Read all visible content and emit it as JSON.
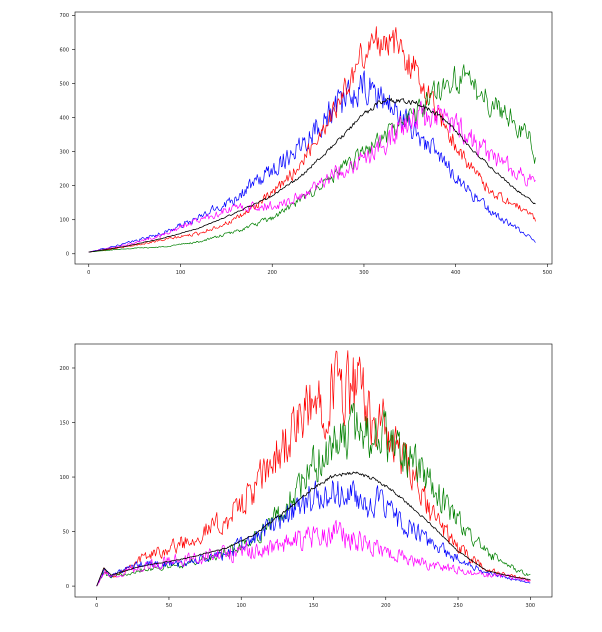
{
  "chart_data": [
    {
      "type": "line",
      "title": "",
      "xlabel": "",
      "ylabel": "",
      "xlim": [
        -15,
        505
      ],
      "ylim": [
        -30,
        710
      ],
      "x_ticks": [
        0,
        100,
        200,
        300,
        400,
        500
      ],
      "y_ticks": [
        0,
        100,
        200,
        300,
        400,
        500,
        600,
        700
      ],
      "grid": false,
      "series": [
        {
          "color": "#0000ff",
          "noise": 0.09,
          "x": [
            0,
            40,
            80,
            120,
            160,
            200,
            230,
            260,
            280,
            300,
            320,
            340,
            360,
            380,
            400,
            420,
            440,
            460,
            480,
            487
          ],
          "y": [
            5,
            30,
            60,
            105,
            165,
            245,
            320,
            405,
            450,
            485,
            460,
            400,
            350,
            290,
            230,
            170,
            120,
            85,
            50,
            35
          ]
        },
        {
          "color": "#ff0000",
          "noise": 0.07,
          "x": [
            0,
            40,
            80,
            120,
            160,
            200,
            230,
            260,
            280,
            300,
            320,
            340,
            360,
            380,
            400,
            420,
            440,
            460,
            480,
            487
          ],
          "y": [
            5,
            20,
            40,
            60,
            100,
            175,
            260,
            390,
            480,
            590,
            640,
            600,
            520,
            420,
            320,
            240,
            180,
            150,
            120,
            100
          ]
        },
        {
          "color": "#008000",
          "noise": 0.07,
          "x": [
            0,
            40,
            80,
            120,
            160,
            200,
            230,
            260,
            280,
            300,
            320,
            340,
            360,
            380,
            400,
            420,
            440,
            460,
            480,
            487
          ],
          "y": [
            5,
            15,
            20,
            35,
            65,
            105,
            155,
            215,
            255,
            300,
            340,
            380,
            420,
            480,
            520,
            490,
            440,
            400,
            340,
            270
          ]
        },
        {
          "color": "#ff00ff",
          "noise": 0.09,
          "x": [
            0,
            40,
            80,
            120,
            160,
            200,
            230,
            260,
            280,
            300,
            320,
            340,
            360,
            380,
            400,
            420,
            440,
            460,
            480,
            487
          ],
          "y": [
            5,
            25,
            55,
            100,
            135,
            140,
            165,
            225,
            250,
            280,
            320,
            370,
            400,
            410,
            380,
            330,
            290,
            250,
            220,
            200
          ]
        },
        {
          "color": "#000000",
          "noise": 0.015,
          "x": [
            0,
            40,
            80,
            120,
            160,
            200,
            230,
            260,
            280,
            300,
            320,
            340,
            360,
            380,
            400,
            420,
            440,
            460,
            480,
            487
          ],
          "y": [
            5,
            22,
            45,
            75,
            120,
            170,
            225,
            300,
            355,
            410,
            450,
            450,
            440,
            410,
            360,
            300,
            250,
            200,
            160,
            145
          ]
        }
      ]
    },
    {
      "type": "line",
      "title": "",
      "xlabel": "",
      "ylabel": "",
      "xlim": [
        -15,
        315
      ],
      "ylim": [
        -10,
        222
      ],
      "x_ticks": [
        0,
        50,
        100,
        150,
        200,
        250,
        300
      ],
      "y_ticks": [
        0,
        50,
        100,
        150,
        200
      ],
      "grid": false,
      "series": [
        {
          "color": "#ff0000",
          "noise": 0.16,
          "x": [
            0,
            5,
            10,
            30,
            60,
            90,
            110,
            130,
            150,
            165,
            180,
            195,
            210,
            230,
            250,
            270,
            290,
            300
          ],
          "y": [
            0,
            15,
            8,
            25,
            40,
            60,
            90,
            130,
            165,
            185,
            180,
            150,
            120,
            70,
            35,
            15,
            8,
            5
          ]
        },
        {
          "color": "#008000",
          "noise": 0.14,
          "x": [
            0,
            5,
            10,
            30,
            60,
            90,
            110,
            130,
            150,
            165,
            180,
            195,
            210,
            230,
            250,
            270,
            290,
            300
          ],
          "y": [
            0,
            12,
            8,
            15,
            20,
            30,
            45,
            70,
            110,
            130,
            145,
            140,
            125,
            95,
            60,
            30,
            15,
            10
          ]
        },
        {
          "color": "#0000ff",
          "noise": 0.16,
          "x": [
            0,
            5,
            10,
            30,
            60,
            90,
            110,
            130,
            150,
            165,
            180,
            195,
            210,
            230,
            250,
            270,
            290,
            300
          ],
          "y": [
            0,
            15,
            10,
            20,
            20,
            30,
            45,
            65,
            80,
            85,
            80,
            75,
            60,
            40,
            25,
            12,
            6,
            3
          ]
        },
        {
          "color": "#ff00ff",
          "noise": 0.22,
          "x": [
            0,
            5,
            10,
            30,
            60,
            90,
            110,
            130,
            150,
            165,
            180,
            195,
            210,
            230,
            250,
            270,
            290,
            300
          ],
          "y": [
            0,
            12,
            8,
            18,
            25,
            30,
            32,
            38,
            45,
            48,
            42,
            35,
            28,
            20,
            15,
            10,
            8,
            5
          ]
        },
        {
          "color": "#000000",
          "noise": 0.015,
          "x": [
            0,
            5,
            10,
            30,
            60,
            90,
            110,
            130,
            150,
            165,
            180,
            195,
            210,
            230,
            250,
            270,
            290,
            300
          ],
          "y": [
            0,
            17,
            10,
            18,
            25,
            35,
            48,
            68,
            90,
            102,
            104,
            96,
            82,
            58,
            32,
            14,
            8,
            6
          ]
        }
      ]
    }
  ]
}
